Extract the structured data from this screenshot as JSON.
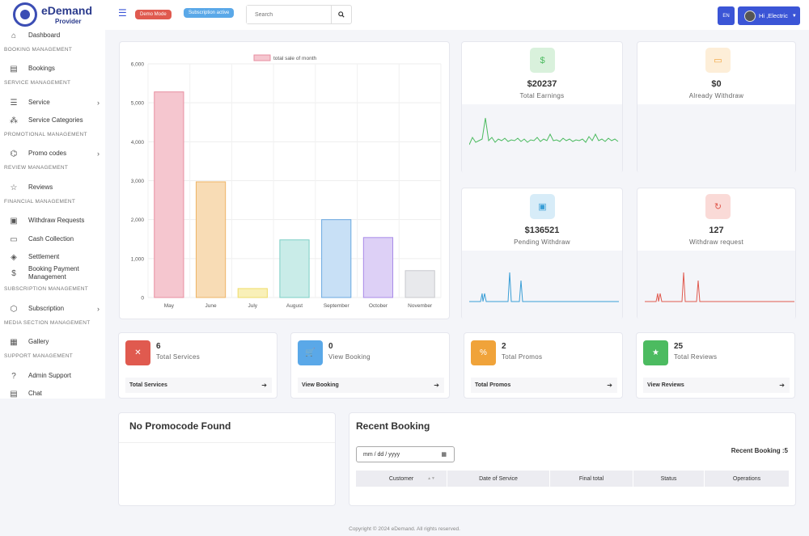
{
  "brand": {
    "title": "eDemand",
    "subtitle": "Provider"
  },
  "sidebar": {
    "dashboard": "Dashboard",
    "sections": [
      {
        "title": "BOOKING MANAGEMENT"
      },
      {
        "title": "SERVICE MANAGEMENT"
      },
      {
        "title": "PROMOTIONAL MANAGEMENT"
      },
      {
        "title": "REVIEW MANAGEMENT"
      },
      {
        "title": "FINANCIAL MANAGEMENT"
      },
      {
        "title": "SUBSCRIPTION MANAGEMENT"
      },
      {
        "title": "MEDIA SECTION MANAGEMENT"
      },
      {
        "title": "SUPPORT MANAGEMENT"
      }
    ],
    "items": {
      "bookings": "Bookings",
      "service": "Service",
      "service_categories": "Service Categories",
      "promo_codes": "Promo codes",
      "reviews": "Reviews",
      "withdraw_requests": "Withdraw Requests",
      "cash_collection": "Cash Collection",
      "settlement": "Settlement",
      "booking_payment_1": "Booking Payment",
      "booking_payment_2": "Management",
      "subscription": "Subscription",
      "gallery": "Gallery",
      "admin_support": "Admin Support",
      "chat": "Chat"
    }
  },
  "topbar": {
    "demo_mode": "Demo Mode",
    "subscription": "Subscription active",
    "search_placeholder": "Search",
    "lang": "EN",
    "user": "Hi ,Electric"
  },
  "chart_data": {
    "type": "bar",
    "title": "",
    "legend": [
      "total sale of month"
    ],
    "categories": [
      "May",
      "June",
      "July",
      "August",
      "September",
      "October",
      "November"
    ],
    "values": [
      5280,
      2970,
      230,
      1480,
      2000,
      1540,
      690
    ],
    "yticks": [
      "0",
      "1,000",
      "2,000",
      "3,000",
      "4,000",
      "5,000",
      "6,000"
    ],
    "ylim": [
      0,
      6000
    ],
    "colors": [
      "#f5c6cf",
      "#f8dcb5",
      "#f9f0b8",
      "#c9ece8",
      "#c8e0f6",
      "#ddd0f6",
      "#e8e9ec"
    ],
    "borders": [
      "#e88ea0",
      "#eeb466",
      "#eedc6a",
      "#7ccfc6",
      "#6aa8e0",
      "#a98be8",
      "#c8c9ce"
    ]
  },
  "stats": [
    {
      "value": "$20237",
      "label": "Total Earnings",
      "color": "#4cbb60",
      "icon_bg": "#d9f1dc"
    },
    {
      "value": "$0",
      "label": "Already Withdraw",
      "color": "#f0a33a",
      "icon_bg": "#fdeed8"
    },
    {
      "value": "$136521",
      "label": "Pending Withdraw",
      "color": "#3a9ed6",
      "icon_bg": "#d7ecf8"
    },
    {
      "value": "127",
      "label": "Withdraw request",
      "color": "#e05a4f",
      "icon_bg": "#fadad7"
    }
  ],
  "minis": [
    {
      "num": "6",
      "title": "Total Services",
      "foot": "Total Services",
      "color": "#e05a4f"
    },
    {
      "num": "0",
      "title": "View Booking",
      "foot": "View Booking",
      "color": "#5aa8e8"
    },
    {
      "num": "2",
      "title": "Total Promos",
      "foot": "Total Promos",
      "color": "#f0a33a"
    },
    {
      "num": "25",
      "title": "Total Reviews",
      "foot": "View Reviews",
      "color": "#4cbb60"
    }
  ],
  "promo": {
    "title": "No Promocode Found"
  },
  "recent": {
    "title": "Recent Booking",
    "date_placeholder": "mm / dd / yyyy",
    "count": "Recent Booking :5",
    "columns": [
      "Customer",
      "Date of Service",
      "Final total",
      "Status",
      "Operations"
    ]
  },
  "footer": "Copyright © 2024 eDemand. All rights reserved."
}
